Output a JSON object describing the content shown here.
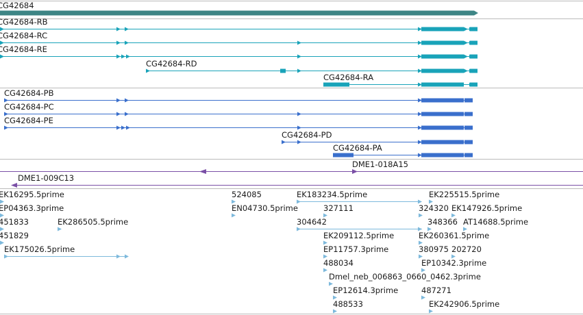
{
  "colors": {
    "gene": "#3d8585",
    "transcript": "#19a3b9",
    "protein": "#3a6fcc",
    "bac": "#7a4fa6",
    "est": "#7db9dc",
    "divider": "#bbbbbb"
  },
  "tracks": {
    "gene": {
      "label": "CG42684"
    },
    "transcripts": [
      {
        "label": "CG42684-RB"
      },
      {
        "label": "CG42684-RC"
      },
      {
        "label": "CG42684-RE"
      },
      {
        "label": "CG42684-RD"
      },
      {
        "label": "CG42684-RA"
      }
    ],
    "proteins": [
      {
        "label": "CG42684-PB"
      },
      {
        "label": "CG42684-PC"
      },
      {
        "label": "CG42684-PE"
      },
      {
        "label": "CG42684-PD"
      },
      {
        "label": "CG42684-PA"
      }
    ],
    "bacs": [
      {
        "label": "DME1-018A15"
      },
      {
        "label": "DME1-009C13"
      }
    ],
    "ests": [
      {
        "label": "EK16295.5prime"
      },
      {
        "label": "EP04363.3prime"
      },
      {
        "label": "451833"
      },
      {
        "label": "451829"
      },
      {
        "label": "EK175026.5prime"
      },
      {
        "label": "EK286505.5prime"
      },
      {
        "label": "524085"
      },
      {
        "label": "EN04730.5prime"
      },
      {
        "label": "EK183234.5prime"
      },
      {
        "label": "327111"
      },
      {
        "label": "304642"
      },
      {
        "label": "EK209112.5prime"
      },
      {
        "label": "EP11757.3prime"
      },
      {
        "label": "488034"
      },
      {
        "label": "Dmel_neb_006863_0660_0462.3prime"
      },
      {
        "label": "EP12614.3prime"
      },
      {
        "label": "488533"
      },
      {
        "label": "EK225515.5prime"
      },
      {
        "label": "324320"
      },
      {
        "label": "EK147926.5prime"
      },
      {
        "label": "348366"
      },
      {
        "label": "AT14688.5prime"
      },
      {
        "label": "EK260361.5prime"
      },
      {
        "label": "380975"
      },
      {
        "label": "202720"
      },
      {
        "label": "EP10342.3prime"
      },
      {
        "label": "487271"
      },
      {
        "label": "EK242906.5prime"
      }
    ]
  }
}
